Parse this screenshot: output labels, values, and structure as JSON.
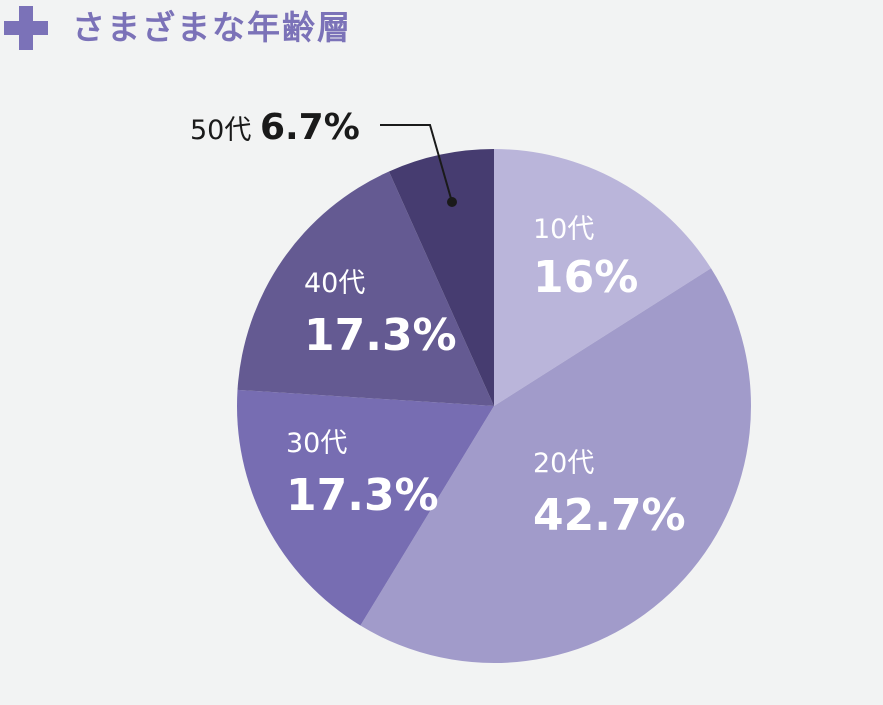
{
  "header": {
    "title": "さまざまな年齢層",
    "icon": "plus-icon",
    "accent_color": "#7b72b8"
  },
  "chart_data": {
    "type": "pie",
    "title": "さまざまな年齢層",
    "unit": "%",
    "slices": [
      {
        "label": "10代",
        "value_text": "16%",
        "value": 16.0,
        "color": "#bab5da"
      },
      {
        "label": "20代",
        "value_text": "42.7%",
        "value": 42.7,
        "color": "#a19bca"
      },
      {
        "label": "30代",
        "value_text": "17.3%",
        "value": 17.3,
        "color": "#776db2"
      },
      {
        "label": "40代",
        "value_text": "17.3%",
        "value": 17.3,
        "color": "#645a92"
      },
      {
        "label": "50代",
        "value_text": "6.7%",
        "value": 6.7,
        "color": "#463c70"
      }
    ],
    "start_angle_deg": 0,
    "direction": "clockwise",
    "label_color_inside": "#ffffff",
    "label_color_outside": "#1a1a1a",
    "outside_label_index": 4
  }
}
